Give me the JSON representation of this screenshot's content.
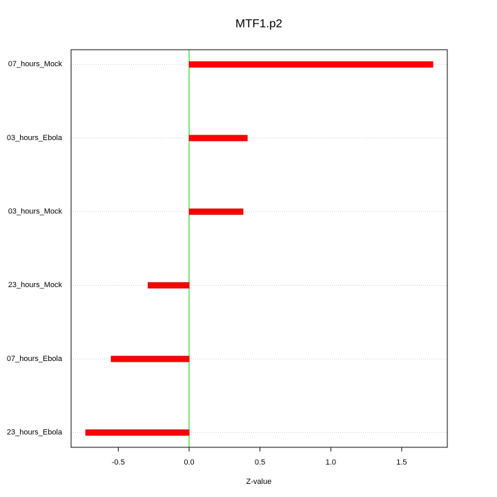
{
  "chart_data": {
    "type": "bar",
    "orientation": "horizontal",
    "title": "MTF1.p2",
    "x_label": "Z-value",
    "categories": [
      "07_hours_Mock",
      "03_hours_Ebola",
      "03_hours_Mock",
      "23_hours_Mock",
      "07_hours_Ebola",
      "23_hours_Ebola"
    ],
    "values": [
      1.72,
      0.41,
      0.38,
      -0.29,
      -0.55,
      -0.73
    ],
    "color": "#ff0000",
    "xlim": [
      -0.833,
      1.822
    ],
    "xticks": [
      -0.5,
      {
        "value": 0,
        "label": "0.0"
      },
      0.5,
      {
        "value": 1,
        "label": "1.0"
      },
      1.5
    ],
    "grid": true,
    "reference_line": {
      "value": 0,
      "color": "#00cc00"
    }
  }
}
